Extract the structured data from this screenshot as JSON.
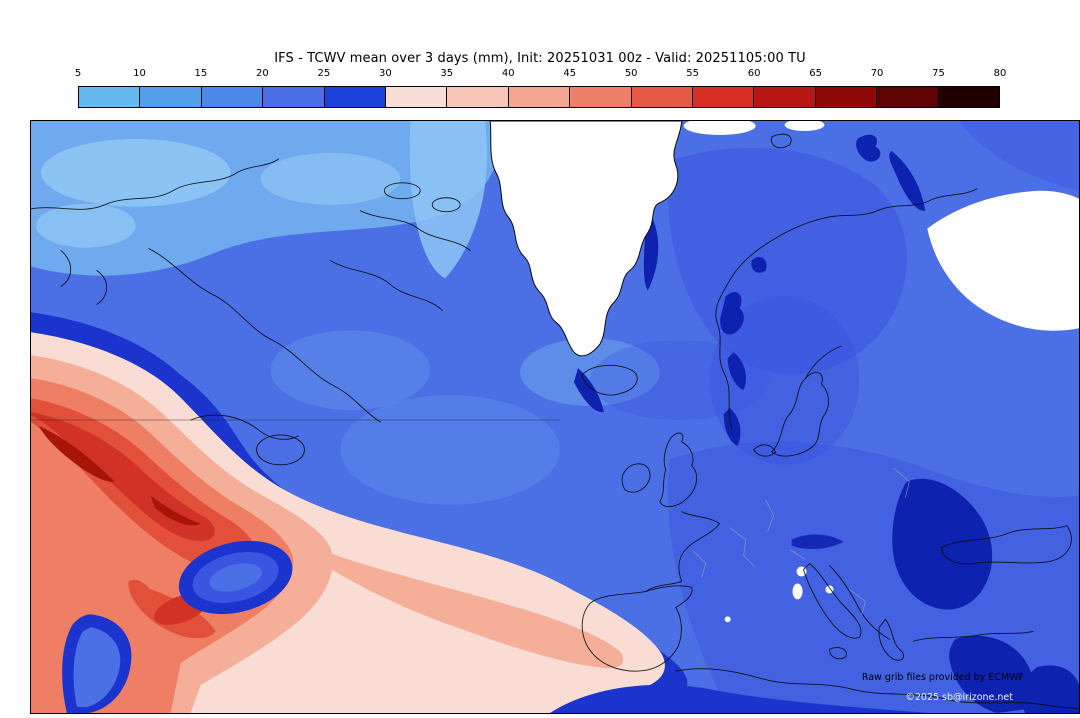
{
  "header": {
    "title": "IFS - TCWV mean over 3 days (mm), Init: 20251031 00z - Valid: 20251105:00 TU"
  },
  "colorbar": {
    "ticks": [
      "5",
      "10",
      "15",
      "20",
      "25",
      "30",
      "35",
      "40",
      "45",
      "50",
      "55",
      "60",
      "65",
      "70",
      "75",
      "80"
    ],
    "segment_colors": [
      "#66b8f0",
      "#549fec",
      "#4b8ae8",
      "#4a6fe6",
      "#1c41da",
      "#f9ded8",
      "#f7c6b6",
      "#f3a691",
      "#ee8069",
      "#e65a45",
      "#d83024",
      "#b81612",
      "#8e0808",
      "#5e0202",
      "#200000"
    ]
  },
  "map": {
    "credit": "Raw grib files provided by ECMWF",
    "copyright": "©2025 sb@irizone.net",
    "palette": {
      "ocean_base": "#4b6fe4",
      "light_blue": "#6fa9ee",
      "pale_sky": "#8ec6f4",
      "deep_blue": "#3a55e0",
      "navy": "#1b34ce",
      "dark_navy": "#0e22b0",
      "land_blank": "#ffffff",
      "pale_pink": "#f9ddd4",
      "salmon": "#f5af98",
      "coral": "#ee7e64",
      "red_orange": "#e2503a",
      "red": "#d03225",
      "dark_red": "#a81408"
    }
  }
}
